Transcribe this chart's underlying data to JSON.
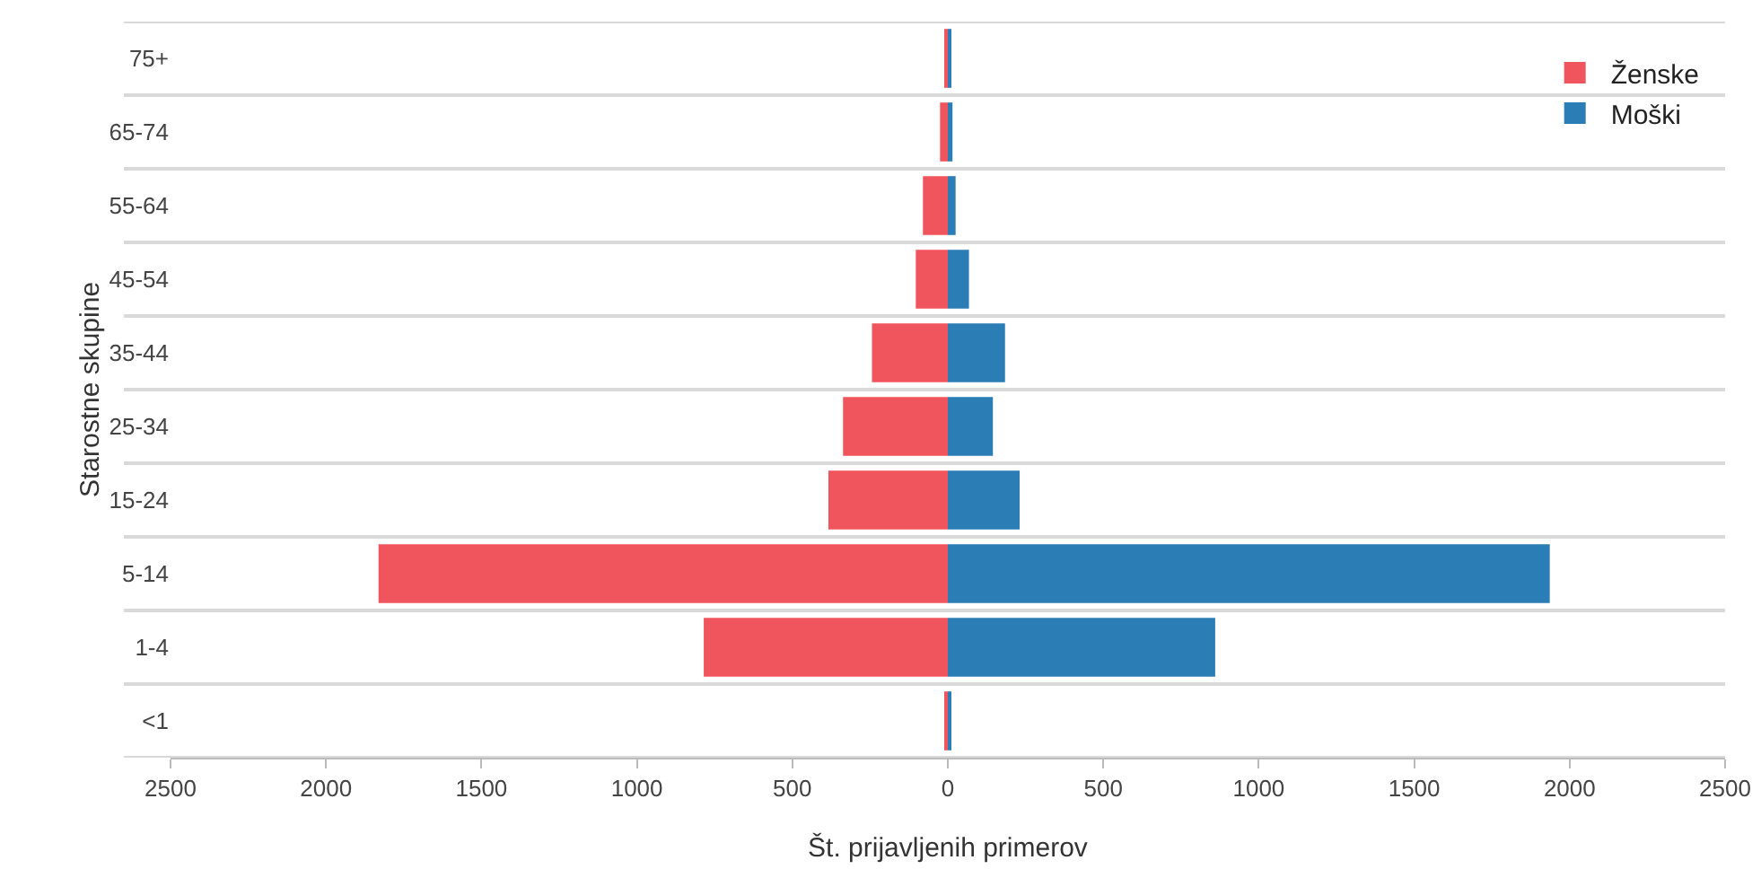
{
  "chart_data": {
    "type": "bar",
    "orientation": "horizontal",
    "stacked": true,
    "xlabel": "Št. prijavljenih primerov",
    "ylabel": "Starostne skupine",
    "categories": [
      "75+",
      "65-74",
      "55-64",
      "45-54",
      "35-44",
      "25-34",
      "15-24",
      "5-14",
      "1-4",
      "<1"
    ],
    "series": [
      {
        "name": "Ženske",
        "color": "#f0545c",
        "values": [
          -6,
          -25,
          -80,
          -103,
          -244,
          -337,
          -384,
          -1831,
          -785,
          -10
        ]
      },
      {
        "name": "Moški",
        "color": "#2a7db5",
        "values": [
          6,
          15,
          25,
          68,
          184,
          145,
          231,
          1936,
          860,
          10
        ]
      }
    ],
    "xlim": [
      -2500,
      2500
    ],
    "xticks": [
      {
        "value": -2500,
        "label": "2500"
      },
      {
        "value": -2000,
        "label": "2000"
      },
      {
        "value": -1500,
        "label": "1500"
      },
      {
        "value": -1000,
        "label": "1000"
      },
      {
        "value": -500,
        "label": "500"
      },
      0,
      500,
      1000,
      1500,
      2000,
      2500
    ],
    "grid": "y",
    "legend": "top right"
  }
}
